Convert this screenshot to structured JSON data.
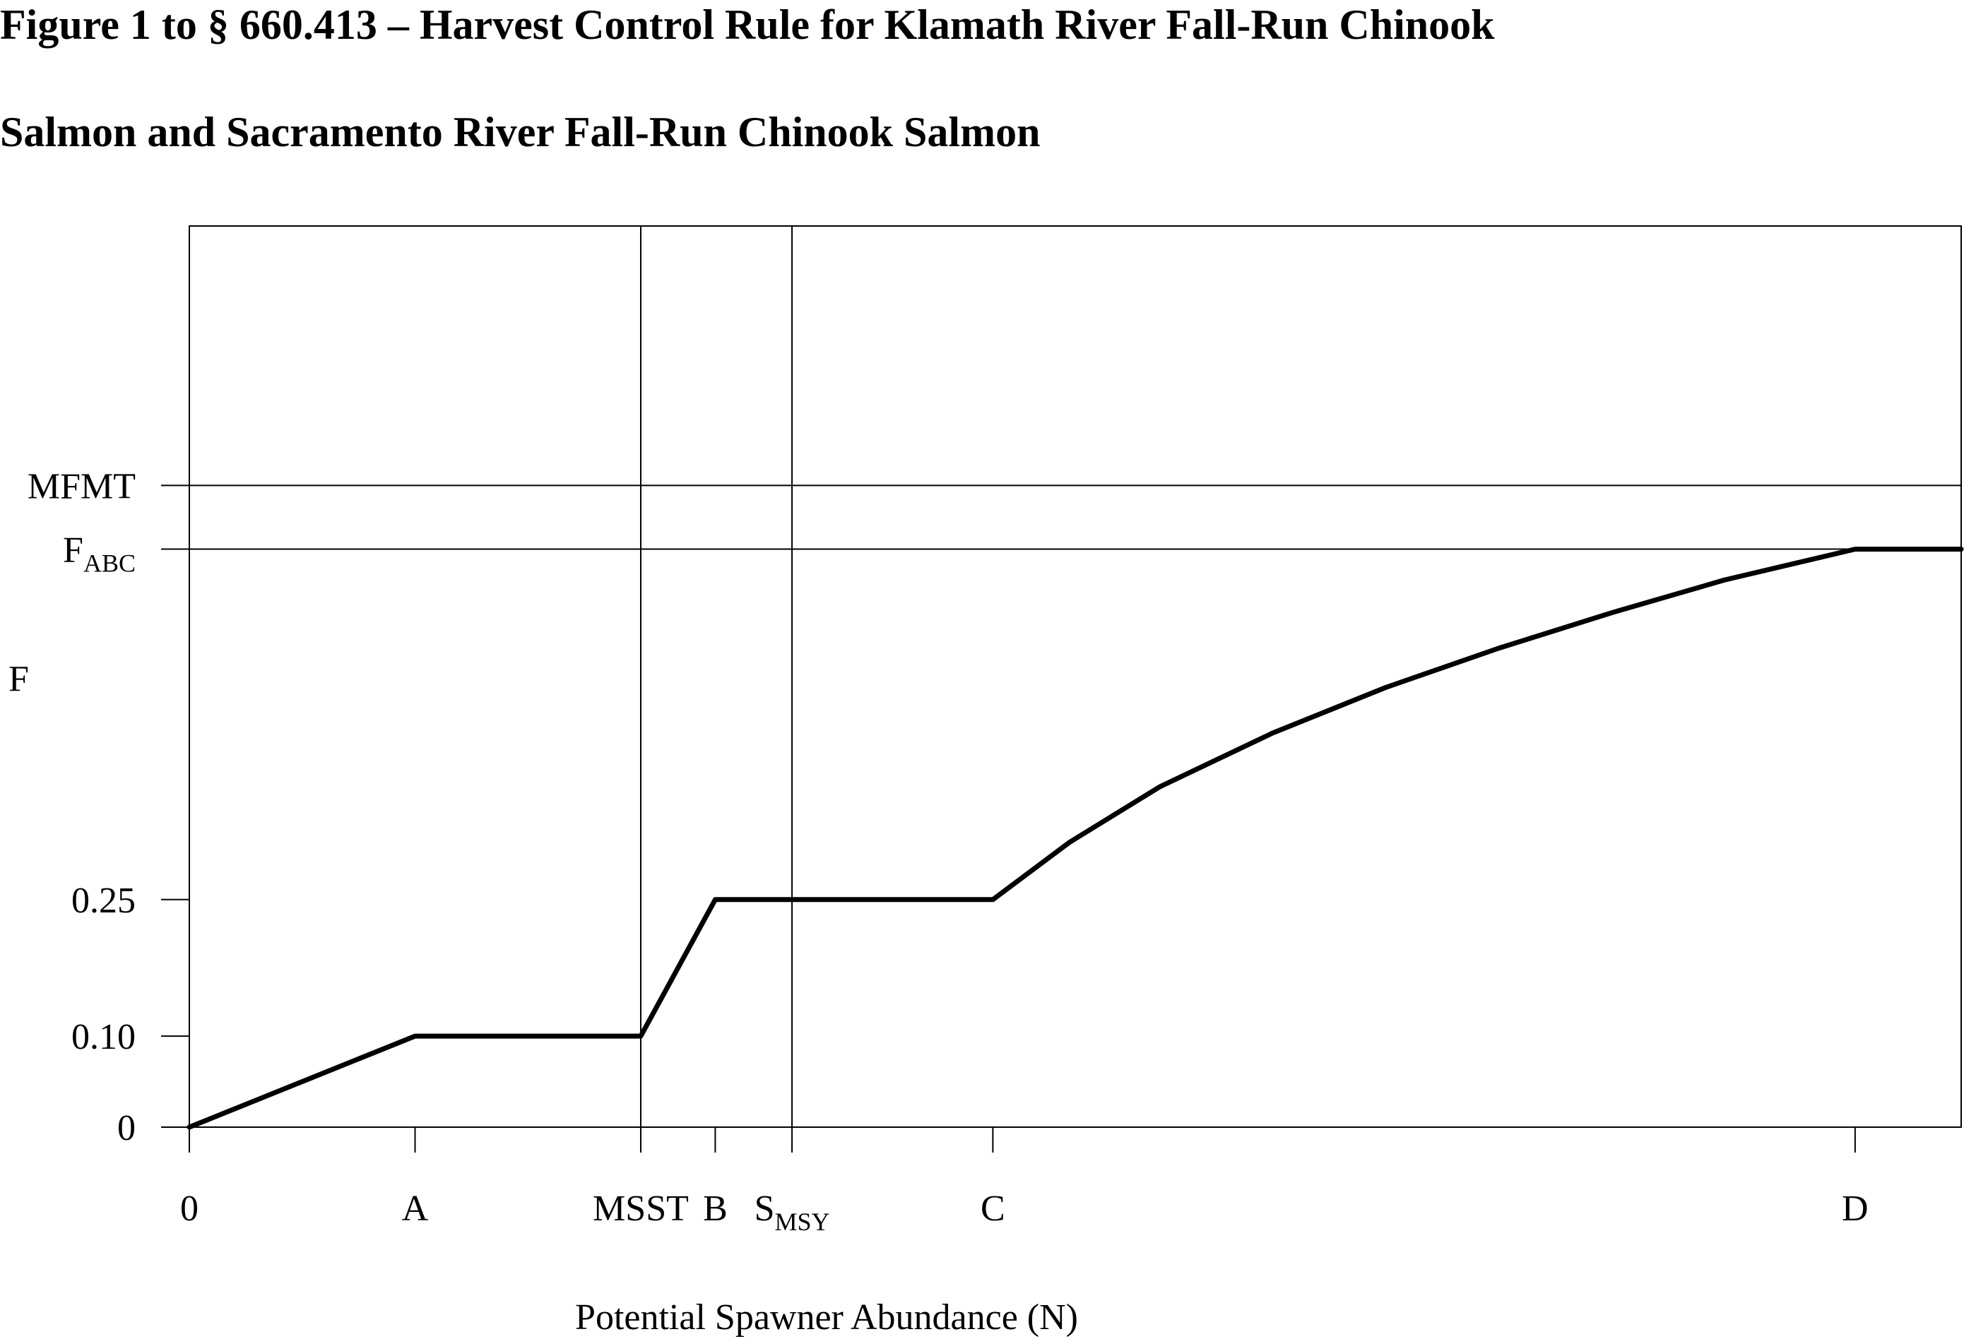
{
  "chart_data": {
    "type": "line",
    "title_lines": [
      "Figure 1 to § 660.413 – Harvest Control Rule for Klamath River Fall-Run Chinook",
      "Salmon and Sacramento River Fall-Run Chinook Salmon"
    ],
    "xlabel": "Potential Spawner Abundance (N)",
    "ylabel": "F",
    "x_ticks": [
      {
        "label": "0",
        "sub": "",
        "value": 0
      },
      {
        "label": "A",
        "sub": "",
        "value": 1
      },
      {
        "label": "MSST",
        "sub": "",
        "value": 2
      },
      {
        "label": "B",
        "sub": "",
        "value": 2.33
      },
      {
        "label": "S",
        "sub": "MSY",
        "value": 2.67
      },
      {
        "label": "C",
        "sub": "",
        "value": 3.56
      },
      {
        "label": "D",
        "sub": "",
        "value": 7.38
      }
    ],
    "xlim": [
      0,
      7.85
    ],
    "y_ticks": [
      {
        "label": "0",
        "sub": "",
        "value": 0
      },
      {
        "label": "0.10",
        "sub": "",
        "value": 0.1
      },
      {
        "label": "0.25",
        "sub": "",
        "value": 0.25
      },
      {
        "label": "F",
        "sub": "ABC",
        "value": 0.635
      },
      {
        "label": "MFMT",
        "sub": "",
        "value": 0.705
      }
    ],
    "ylim": [
      0,
      0.99
    ],
    "reference_lines": {
      "vertical": [
        "MSST",
        "S_MSY"
      ],
      "horizontal": [
        "MFMT",
        "F_ABC"
      ]
    },
    "series": [
      {
        "x": [
          0,
          1,
          2,
          2.33,
          3.56,
          3.9,
          4.3,
          4.8,
          5.3,
          5.8,
          6.3,
          6.8,
          7.38,
          7.85
        ],
        "y": [
          0,
          0.1,
          0.1,
          0.25,
          0.25,
          0.313,
          0.374,
          0.433,
          0.483,
          0.526,
          0.565,
          0.601,
          0.635,
          0.635
        ]
      }
    ],
    "grid": false,
    "legend": "none"
  }
}
